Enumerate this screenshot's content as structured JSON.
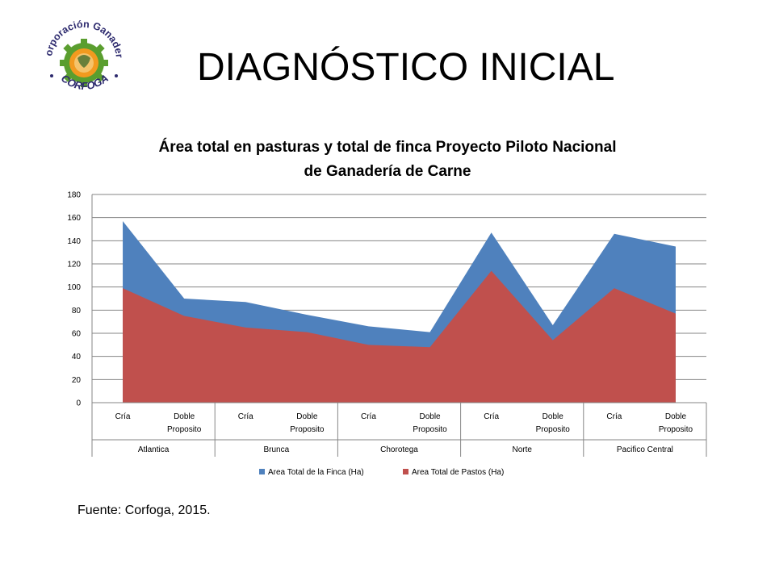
{
  "slide": {
    "title": "DIAGNÓSTICO INICIAL",
    "source": "Fuente: Corfoga, 2015."
  },
  "logo": {
    "text_top": "Corporación Ganadera",
    "text_bottom": "CORFOGA",
    "colors": {
      "gear_green": "#5a9e2f",
      "gear_orange": "#f29a1f",
      "text": "#2d2a6e"
    }
  },
  "chart_data": {
    "type": "area",
    "title": "Área total en pasturas y total de finca Proyecto Piloto Nacional de Ganadería de Carne",
    "title_lines": [
      "Área total en pasturas y total de finca Proyecto Piloto Nacional",
      "de Ganadería de Carne"
    ],
    "groups": [
      "Atlantica",
      "Brunca",
      "Chorotega",
      "Norte",
      "Pacifico Central"
    ],
    "categories": [
      [
        "Cría"
      ],
      [
        "Doble",
        "Proposito"
      ],
      [
        "Cría"
      ],
      [
        "Doble",
        "Proposito"
      ],
      [
        "Cría"
      ],
      [
        "Doble",
        "Proposito"
      ],
      [
        "Cría"
      ],
      [
        "Doble",
        "Proposito"
      ],
      [
        "Cría"
      ],
      [
        "Doble",
        "Proposito"
      ]
    ],
    "series": [
      {
        "name": "Area Total de la Finca (Ha)",
        "color": "#4f81bd",
        "values": [
          157,
          90,
          87,
          76,
          66,
          61,
          147,
          67,
          146,
          135
        ]
      },
      {
        "name": "Area Total de Pastos (Ha)",
        "color": "#c0504d",
        "values": [
          99,
          75,
          65,
          61,
          50,
          48,
          114,
          54,
          99,
          77
        ]
      }
    ],
    "ylim": [
      0,
      180
    ],
    "yticks": [
      0,
      20,
      40,
      60,
      80,
      100,
      120,
      140,
      160,
      180
    ],
    "grid": true,
    "legend": "bottom"
  }
}
